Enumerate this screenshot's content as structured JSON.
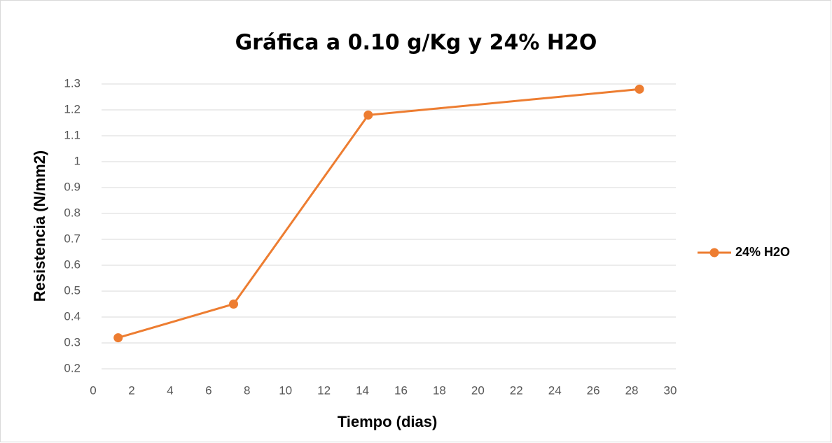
{
  "chart_data": {
    "type": "line",
    "title": "Gráfica a 0.10 g/Kg y 24% H2O",
    "x_label": "Tiempo (dias)",
    "y_label": "Resistencia (N/mm2)",
    "series": [
      {
        "name": "24% H2O",
        "color": "#ed7d31",
        "x": [
          1.3,
          7.3,
          14.3,
          28.4
        ],
        "values": [
          0.32,
          0.45,
          1.18,
          1.28
        ]
      }
    ],
    "xlim": [
      0,
      30
    ],
    "xticks": [
      0,
      2,
      4,
      6,
      8,
      10,
      12,
      14,
      16,
      18,
      20,
      22,
      24,
      26,
      28,
      30
    ],
    "ylim": [
      0.2,
      1.3
    ],
    "yticks": [
      0.2,
      0.3,
      0.4,
      0.5,
      0.6,
      0.7,
      0.8,
      0.9,
      1,
      1.1,
      1.2,
      1.3
    ],
    "grid": true,
    "legend": "right"
  }
}
